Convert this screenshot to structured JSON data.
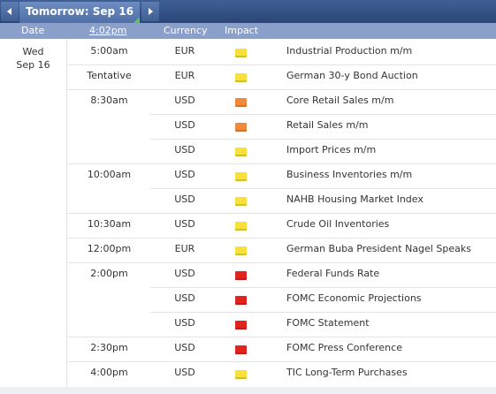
{
  "tab": {
    "label": "Tomorrow: Sep 16"
  },
  "header": {
    "date": "Date",
    "time": "4:02pm",
    "currency": "Currency",
    "impact": "Impact"
  },
  "days": [
    {
      "day": "Wed",
      "date": "Sep 16",
      "events": [
        {
          "time": "5:00am",
          "currency": "EUR",
          "impact_color": "#f7e13a",
          "title": "Industrial Production m/m"
        },
        {
          "time": "Tentative",
          "currency": "EUR",
          "impact_color": "#f7e13a",
          "title": "German 30-y Bond Auction"
        },
        {
          "time": "8:30am",
          "currency": "USD",
          "impact_color": "#ef8a3c",
          "title": "Core Retail Sales m/m"
        },
        {
          "currency": "USD",
          "impact_color": "#ef8a3c",
          "title": "Retail Sales m/m"
        },
        {
          "currency": "USD",
          "impact_color": "#f7e13a",
          "title": "Import Prices m/m"
        },
        {
          "time": "10:00am",
          "currency": "USD",
          "impact_color": "#f7e13a",
          "title": "Business Inventories m/m"
        },
        {
          "currency": "USD",
          "impact_color": "#f7e13a",
          "title": "NAHB Housing Market Index"
        },
        {
          "time": "10:30am",
          "currency": "USD",
          "impact_color": "#f7e13a",
          "title": "Crude Oil Inventories"
        },
        {
          "time": "12:00pm",
          "currency": "EUR",
          "impact_color": "#f7e13a",
          "title": "German Buba President Nagel Speaks"
        },
        {
          "time": "2:00pm",
          "currency": "USD",
          "impact_color": "#e0231f",
          "title": "Federal Funds Rate"
        },
        {
          "currency": "USD",
          "impact_color": "#e0231f",
          "title": "FOMC Economic Projections"
        },
        {
          "currency": "USD",
          "impact_color": "#e0231f",
          "title": "FOMC Statement"
        },
        {
          "time": "2:30pm",
          "currency": "USD",
          "impact_color": "#e0231f",
          "title": "FOMC Press Conference"
        },
        {
          "time": "4:00pm",
          "currency": "USD",
          "impact_color": "#f7e13a",
          "title": "TIC Long-Term Purchases"
        }
      ]
    }
  ]
}
